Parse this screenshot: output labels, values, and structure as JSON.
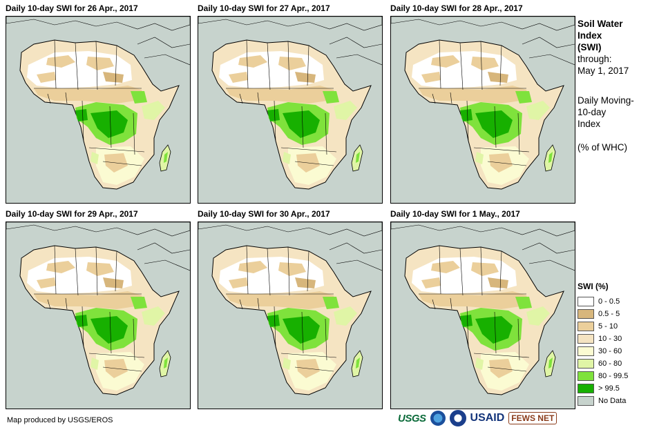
{
  "panels": [
    {
      "title": "Daily 10-day SWI for 26 Apr., 2017"
    },
    {
      "title": "Daily 10-day SWI for 27 Apr., 2017"
    },
    {
      "title": "Daily 10-day SWI for 28 Apr., 2017"
    },
    {
      "title": "Daily 10-day SWI for 29 Apr., 2017"
    },
    {
      "title": "Daily 10-day SWI for 30 Apr., 2017"
    },
    {
      "title": "Daily 10-day SWI for 1 May., 2017"
    }
  ],
  "sidebar": {
    "heading_line1": "Soil Water",
    "heading_line2": "Index",
    "heading_line3": "(SWI)",
    "through_label": "through:",
    "through_date": "May 1, 2017",
    "desc_line1": "Daily Moving-",
    "desc_line2": "10-day",
    "desc_line3": "Index",
    "units": "(% of WHC)"
  },
  "legend": {
    "title": "SWI (%)",
    "items": [
      {
        "label": "0 - 0.5",
        "color": "#ffffff"
      },
      {
        "label": "0.5 - 5",
        "color": "#d7b67c"
      },
      {
        "label": "5 - 10",
        "color": "#ebcf9b"
      },
      {
        "label": "10 - 30",
        "color": "#f5e4c2"
      },
      {
        "label": "30 - 60",
        "color": "#fbfbd2"
      },
      {
        "label": "60 - 80",
        "color": "#e0f5a6"
      },
      {
        "label": "80 - 99.5",
        "color": "#7fe23c"
      },
      {
        "label": "> 99.5",
        "color": "#17b000"
      },
      {
        "label": "No Data",
        "color": "#c7d3cd"
      }
    ]
  },
  "credit": "Map produced by USGS/EROS",
  "logos": {
    "usgs": "USGS",
    "usaid": "USAID",
    "fews": "FEWS NET"
  }
}
